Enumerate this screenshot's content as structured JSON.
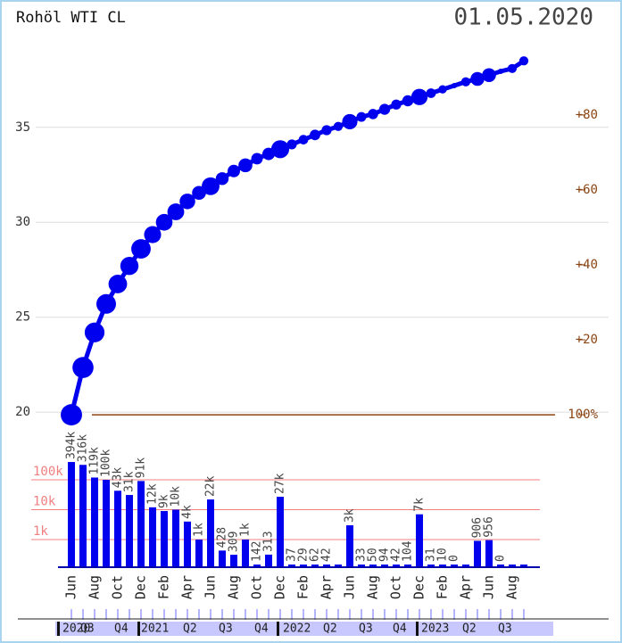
{
  "chart_data": {
    "type": "futures-curve",
    "title": "Rohöl WTI CL",
    "date": "01.05.2020",
    "categories": [
      "Jun",
      null,
      "Aug",
      null,
      "Oct",
      null,
      "Dec",
      null,
      "Feb",
      null,
      "Apr",
      null,
      "Jun",
      null,
      "Aug",
      null,
      "Oct",
      null,
      "Dec",
      null,
      "Feb",
      null,
      "Apr",
      null,
      "Jun",
      null,
      "Aug",
      null,
      "Oct",
      null,
      "Dec",
      null,
      "Feb",
      null,
      "Apr",
      null,
      "Jun",
      null,
      "Aug",
      null
    ],
    "values": [
      19.86,
      22.35,
      24.2,
      25.7,
      26.75,
      27.7,
      28.6,
      29.35,
      30.0,
      30.55,
      31.1,
      31.55,
      31.9,
      32.3,
      32.7,
      33.0,
      33.35,
      33.6,
      33.85,
      34.1,
      34.35,
      34.6,
      34.85,
      35.05,
      35.3,
      35.55,
      35.7,
      35.95,
      36.2,
      36.4,
      36.6,
      36.8,
      37.0,
      37.2,
      37.4,
      37.55,
      37.75,
      37.95,
      38.1,
      38.5
    ],
    "color": "#0000ee",
    "volumes": [
      394000,
      316000,
      119000,
      100000,
      43000,
      31000,
      91000,
      12000,
      9000,
      10000,
      4000,
      1000,
      22000,
      428,
      309,
      1000,
      142,
      313,
      27000,
      37,
      29,
      62,
      42,
      20,
      3000,
      33,
      50,
      94,
      42,
      104,
      7000,
      31,
      10,
      0,
      20,
      906,
      956,
      0,
      20,
      20
    ],
    "volume_labels": [
      "394k",
      "316k",
      "119k",
      "100k",
      "43k",
      "31k",
      "91k",
      "12k",
      "9k",
      "10k",
      "4k",
      "1k",
      "22k",
      "428",
      "309",
      "1k",
      "142",
      "313",
      "27k",
      "37",
      "29",
      "62",
      "42",
      null,
      "3k",
      "33",
      "50",
      "94",
      "42",
      "104",
      "7k",
      "31",
      "10",
      "0",
      null,
      "906",
      "956",
      "0",
      null,
      null
    ],
    "volume_ticks": [
      {
        "value": 1000,
        "label": "1k"
      },
      {
        "value": 10000,
        "label": "10k"
      },
      {
        "value": 100000,
        "label": "100k"
      }
    ],
    "ylim": [
      17,
      39.5
    ],
    "yticks": [
      20,
      25,
      30,
      35
    ],
    "y2lim": [
      -14.5,
      99.5
    ],
    "y2ticks": [
      {
        "value": 0,
        "label": "100%"
      },
      {
        "value": 20,
        "label": "+20"
      },
      {
        "value": 40,
        "label": "+40"
      },
      {
        "value": 60,
        "label": "+60"
      },
      {
        "value": 80,
        "label": "+80"
      }
    ],
    "periods": [
      "2020",
      "Q3",
      "Q4",
      "2021",
      "Q2",
      "Q3",
      "Q4",
      "2022",
      "Q2",
      "Q3",
      "Q4",
      "2023",
      "Q2",
      "Q3"
    ],
    "grid": true
  }
}
